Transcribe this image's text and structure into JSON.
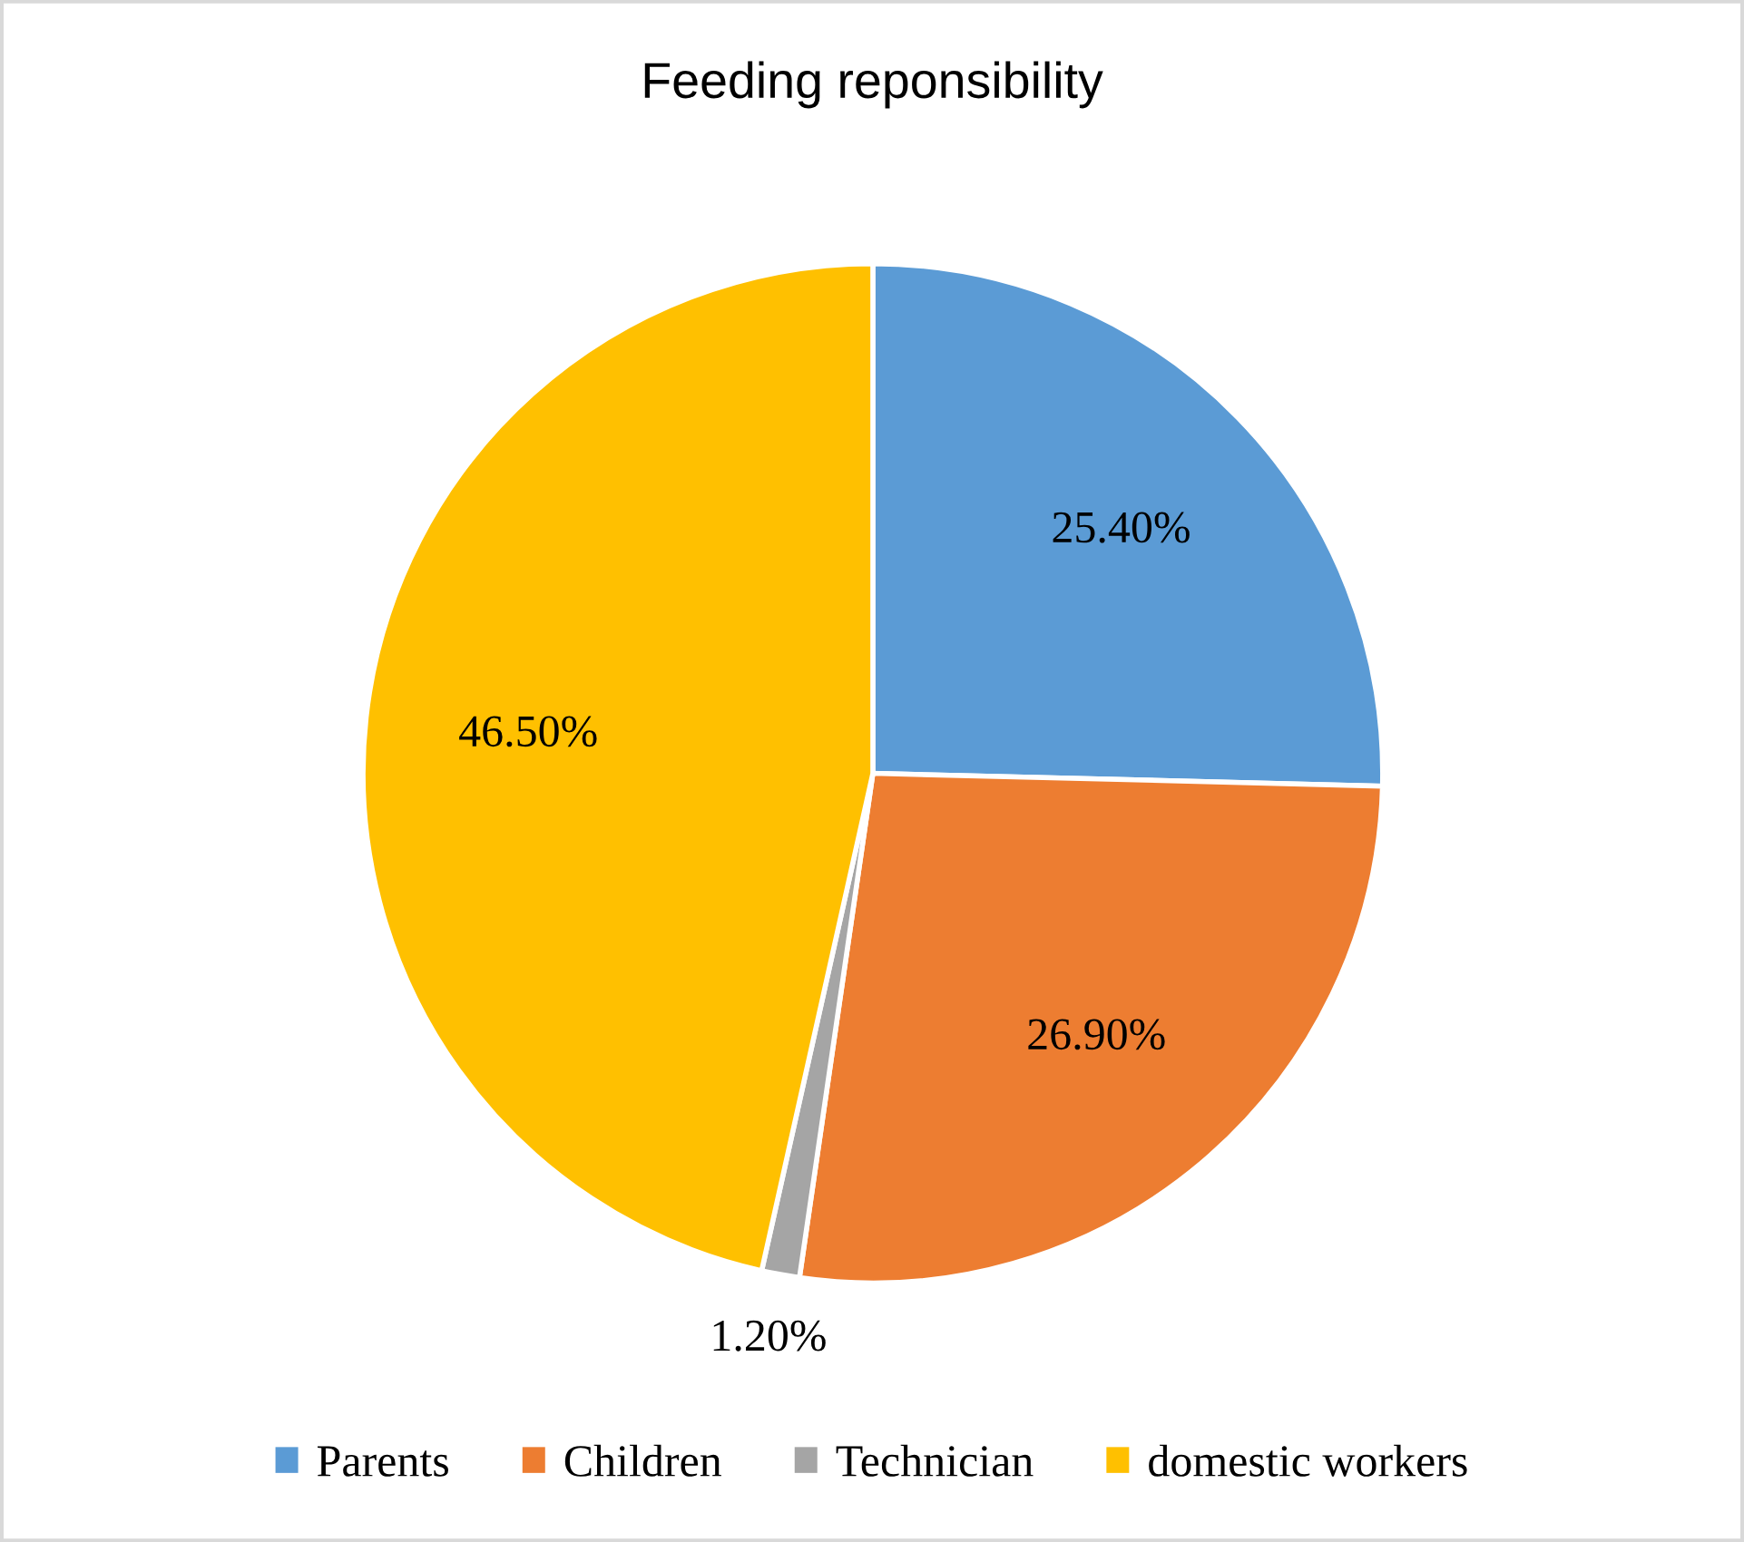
{
  "chart_data": {
    "type": "pie",
    "title": "Feeding reponsibility",
    "categories": [
      "Parents",
      "Children",
      "Technician",
      "domestic workers"
    ],
    "values": [
      25.4,
      26.9,
      1.2,
      46.5
    ],
    "colors": [
      "#5b9bd5",
      "#ed7d31",
      "#a5a5a5",
      "#ffc000"
    ],
    "value_labels": [
      "25.40%",
      "26.90%",
      "1.20%",
      "46.50%"
    ],
    "legend": "bottom"
  }
}
